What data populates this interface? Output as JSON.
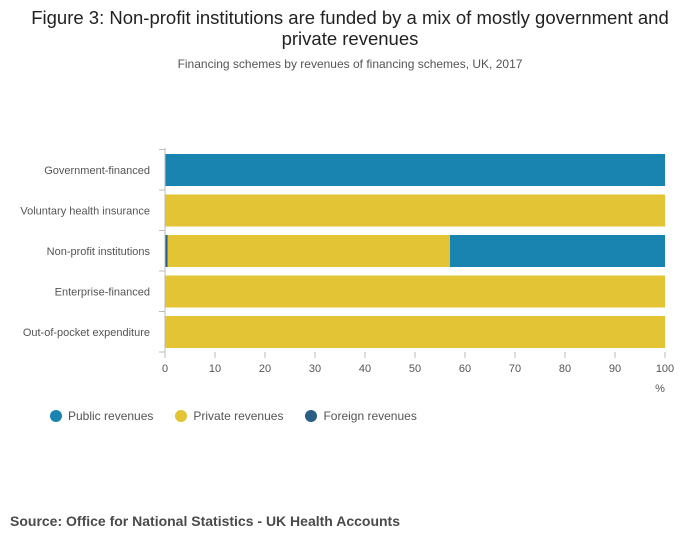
{
  "title": "Figure 3: Non-profit institutions are funded by a mix of mostly government and private revenues",
  "subtitle": "Financing schemes by revenues of financing schemes, UK, 2017",
  "source": "Source: Office for National Statistics - UK Health Accounts",
  "colors": {
    "public": "#1a84b0",
    "private": "#e2c435",
    "foreign": "#2a5e85"
  },
  "chart_data": {
    "type": "bar",
    "orientation": "horizontal",
    "stacked": true,
    "categories": [
      "Government-financed",
      "Voluntary health insurance",
      "Non-profit institutions",
      "Enterprise-financed",
      "Out-of-pocket expenditure"
    ],
    "series": [
      {
        "name": "Public revenues",
        "color": "#1a84b0",
        "values": [
          100,
          0,
          43,
          0,
          0
        ]
      },
      {
        "name": "Private revenues",
        "color": "#e2c435",
        "values": [
          0,
          100,
          56.5,
          100,
          100
        ]
      },
      {
        "name": "Foreign revenues",
        "color": "#2a5e85",
        "values": [
          0,
          0,
          0.5,
          0,
          0
        ]
      }
    ],
    "series_order": [
      "Foreign revenues",
      "Private revenues",
      "Public revenues"
    ],
    "xlim": [
      0,
      100
    ],
    "xticks": [
      0,
      10,
      20,
      30,
      40,
      50,
      60,
      70,
      80,
      90,
      100
    ],
    "xlabel": "%",
    "legend_position": "bottom-left",
    "grid": false
  }
}
